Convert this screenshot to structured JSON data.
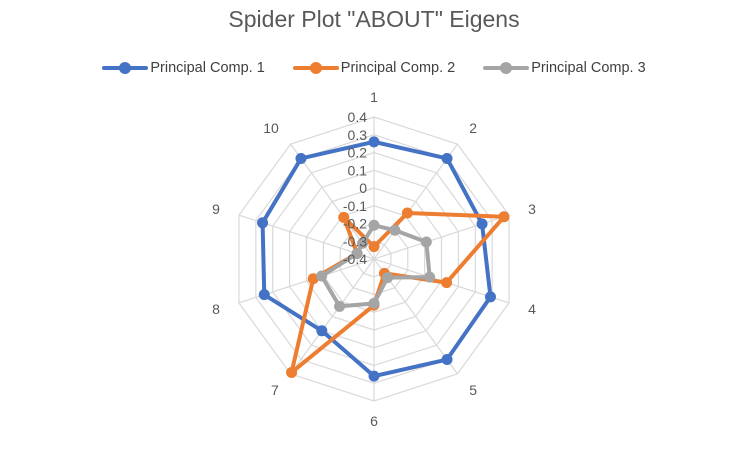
{
  "chart_data": {
    "type": "radar",
    "title": "Spider Plot \"ABOUT\" Eigens",
    "categories": [
      "1",
      "2",
      "3",
      "4",
      "5",
      "6",
      "7",
      "8",
      "9",
      "10"
    ],
    "radial_ticks": [
      "-0.4",
      "-0.3",
      "-0.2",
      "-0.1",
      "0",
      "0.1",
      "0.2",
      "0.3",
      "0.4"
    ],
    "rlim": [
      -0.4,
      0.4
    ],
    "legend_position": "top",
    "series": [
      {
        "name": "Principal Comp. 1",
        "color": "#4472C4",
        "values": [
          0.26,
          0.3,
          0.24,
          0.29,
          0.3,
          0.26,
          0.1,
          0.25,
          0.26,
          0.3
        ]
      },
      {
        "name": "Principal Comp. 2",
        "color": "#ED7D31",
        "values": [
          -0.33,
          -0.08,
          0.37,
          0.03,
          -0.3,
          -0.14,
          0.39,
          -0.04,
          -0.3,
          -0.11
        ]
      },
      {
        "name": "Principal Comp. 3",
        "color": "#A5A5A5",
        "values": [
          -0.21,
          -0.2,
          -0.09,
          -0.07,
          -0.27,
          -0.15,
          -0.07,
          -0.09,
          -0.3,
          -0.29
        ]
      }
    ]
  }
}
